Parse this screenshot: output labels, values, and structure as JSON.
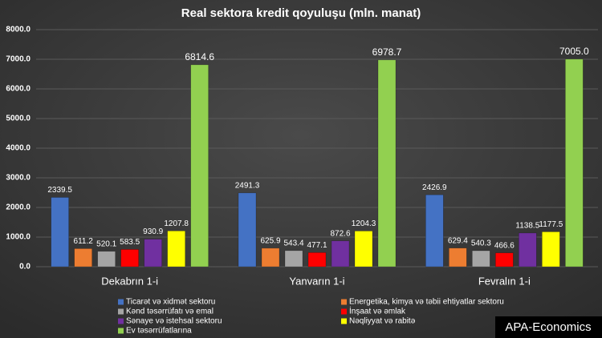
{
  "chart_data": {
    "type": "bar",
    "title": "Real sektora kredit qoyuluşu (mln. manat)",
    "categories": [
      "Dekabrın 1-i",
      "Yanvarın 1-i",
      "Fevralın 1-i"
    ],
    "series": [
      {
        "name": "Ticarət və xidmət sektoru",
        "color": "#4472c4",
        "values": [
          2339.5,
          2491.3,
          2426.9
        ],
        "value_labels": [
          "2339.5",
          "2491.3",
          "2426.9"
        ]
      },
      {
        "name": "Energetika, kimya və təbii ehtiyatlar sektoru",
        "color": "#ed7d31",
        "values": [
          611.2,
          625.9,
          629.4
        ],
        "value_labels": [
          "611.2",
          "625.9",
          "629.4"
        ]
      },
      {
        "name": "Kənd təsərrüfatı və emal",
        "color": "#a5a5a5",
        "values": [
          520.1,
          543.4,
          540.3
        ],
        "value_labels": [
          "520.1",
          "543.4",
          "540.3"
        ]
      },
      {
        "name": "İnşaat və əmlak",
        "color": "#ff0000",
        "values": [
          583.5,
          477.1,
          466.6
        ],
        "value_labels": [
          "583.5",
          "477.1",
          "466.6"
        ]
      },
      {
        "name": "Sənaye və istehsal sektoru",
        "color": "#7030a0",
        "values": [
          930.9,
          872.6,
          1138.5
        ],
        "value_labels": [
          "930.9",
          "872.6",
          "1138.5"
        ]
      },
      {
        "name": "Nəqliyyat və rabitə",
        "color": "#ffff00",
        "values": [
          1207.8,
          1204.3,
          1177.5
        ],
        "value_labels": [
          "1207.8",
          "1204.3",
          "1177.5"
        ]
      },
      {
        "name": "Ev təsərrüfatlarına",
        "color": "#92d050",
        "values": [
          6814.6,
          6978.7,
          7005.0
        ],
        "value_labels": [
          "6814.6",
          "6978.7",
          "7005.0"
        ]
      }
    ],
    "ylim": [
      0,
      8000
    ],
    "yticks": [
      {
        "value": 0,
        "label": "0.0"
      },
      {
        "value": 1000,
        "label": "1000.0"
      },
      {
        "value": 2000,
        "label": "2000.0"
      },
      {
        "value": 3000,
        "label": "3000.0"
      },
      {
        "value": 4000,
        "label": "4000.0"
      },
      {
        "value": 5000,
        "label": "5000.0"
      },
      {
        "value": 6000,
        "label": "6000.0"
      },
      {
        "value": 7000,
        "label": "7000.0"
      },
      {
        "value": 8000,
        "label": "8000.0"
      }
    ],
    "grid": true,
    "legend": "bottom",
    "watermark": "APA-Economics"
  }
}
